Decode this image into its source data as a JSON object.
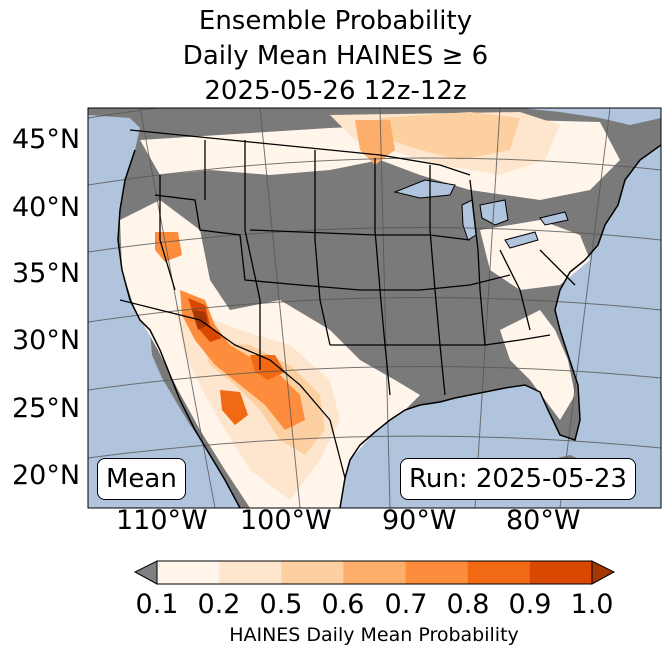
{
  "title": {
    "line1": "Ensemble Probability",
    "line2": "Daily Mean HAINES ≥ 6",
    "line3": "2025-05-26 12z-12z"
  },
  "map": {
    "latitude_labels": [
      "45°N",
      "40°N",
      "35°N",
      "30°N",
      "25°N",
      "20°N"
    ],
    "longitude_labels": [
      "110°W",
      "100°W",
      "90°W",
      "80°W"
    ],
    "mean_label": "Mean",
    "run_label": "Run: 2025-05-23",
    "colors": {
      "ocean": "#b0c4de",
      "no_data_land": "#7a7a7a",
      "boundaries": "#000000"
    }
  },
  "colorbar": {
    "tick_labels": [
      "0.1",
      "0.2",
      "0.5",
      "0.6",
      "0.7",
      "0.8",
      "0.9",
      "1.0"
    ],
    "label": "HAINES Daily Mean Probability",
    "colors": [
      "#808080",
      "#fff5eb",
      "#fee6ce",
      "#fdd0a2",
      "#fdae6b",
      "#fd8d3c",
      "#f16913",
      "#d94801",
      "#a63603"
    ]
  }
}
